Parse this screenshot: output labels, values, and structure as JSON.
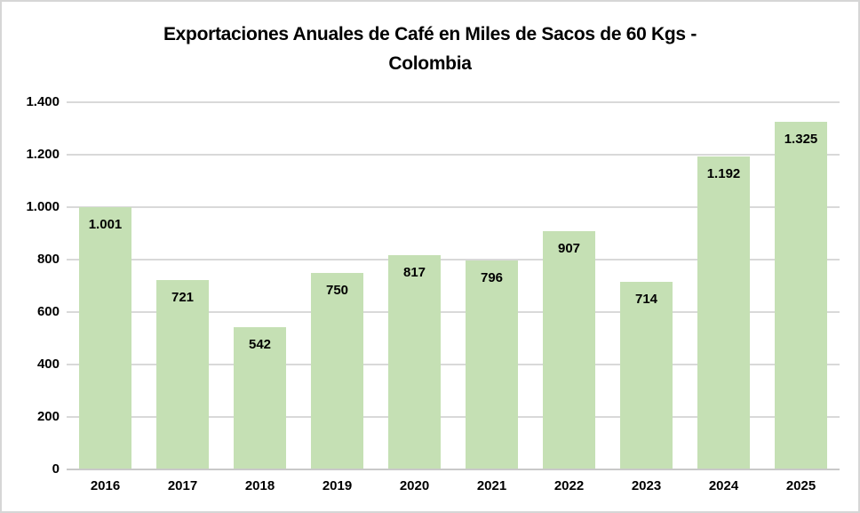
{
  "title": {
    "full": "Exportaciones Anuales de Café en Miles de Sacos de 60 Kgs - Colombia",
    "lines": [
      "Exportaciones Anuales de Café en Miles de Sacos de 60 Kgs -",
      "Colombia"
    ]
  },
  "chart_data": {
    "type": "bar",
    "title": "Exportaciones Anuales de Café en Miles de Sacos de 60 Kgs - Colombia",
    "categories": [
      "2016",
      "2017",
      "2018",
      "2019",
      "2020",
      "2021",
      "2022",
      "2023",
      "2024",
      "2025"
    ],
    "values": [
      1001,
      721,
      542,
      750,
      817,
      796,
      907,
      714,
      1192,
      1325
    ],
    "value_labels": [
      "1.001",
      "721",
      "542",
      "750",
      "817",
      "796",
      "907",
      "714",
      "1.192",
      "1.325"
    ],
    "value_label_position": "inside-end",
    "xlabel": "",
    "ylabel": "",
    "ylim": [
      0,
      1400
    ],
    "yticks": [
      0,
      200,
      400,
      600,
      800,
      1000,
      1200,
      1400
    ],
    "ytick_labels": [
      "0",
      "200",
      "400",
      "600",
      "800",
      "1.000",
      "1.200",
      "1.400"
    ],
    "grid": true,
    "legend_position": "none",
    "bar_color": "#c5e0b4",
    "gridline_color": "#d9d9d9",
    "axis_line_color": "#c9c9c9",
    "text_color": "#000000",
    "background_color": "#ffffff"
  }
}
